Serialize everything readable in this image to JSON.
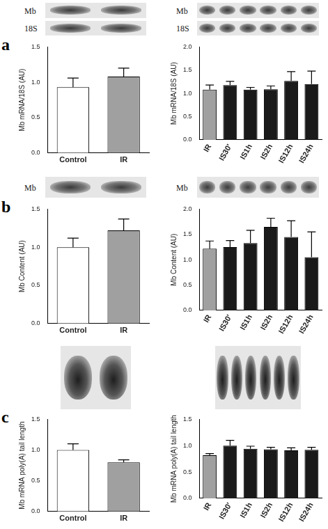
{
  "chart_data": [
    {
      "type": "bar",
      "panel_label": "a",
      "blot_labels": [
        "Mb",
        "18S"
      ],
      "y_label": "Mb mRNA/18S (AU)",
      "categories": [
        "Control",
        "IR"
      ],
      "values": [
        0.93,
        1.08
      ],
      "errors": [
        0.13,
        0.12
      ],
      "colors": [
        "#ffffff",
        "#a0a0a0"
      ],
      "ylim": [
        0,
        1.5
      ],
      "yticks": [
        {
          "value": 0,
          "label": "0.0"
        },
        0.5,
        {
          "value": 1,
          "label": "1.0"
        },
        1.5
      ],
      "grid": false
    },
    {
      "type": "bar",
      "blot_labels": [
        "Mb",
        "18S"
      ],
      "y_label": "Mb mRNA/18S (AU)",
      "categories": [
        "IR",
        "IS30'",
        "IS1h",
        "IS2h",
        "IS12h",
        "IS24h"
      ],
      "values": [
        1.08,
        1.18,
        1.08,
        1.09,
        1.27,
        1.2
      ],
      "errors": [
        0.1,
        0.08,
        0.05,
        0.07,
        0.2,
        0.28
      ],
      "colors": [
        "#a0a0a0",
        "#1a1a1a",
        "#1a1a1a",
        "#1a1a1a",
        "#1a1a1a",
        "#1a1a1a"
      ],
      "ylim": [
        0,
        2
      ],
      "yticks": [
        {
          "value": 0,
          "label": "0.0"
        },
        0.5,
        {
          "value": 1,
          "label": "1.0"
        },
        1.5,
        {
          "value": 2,
          "label": "2.0"
        }
      ],
      "grid": false
    },
    {
      "type": "bar",
      "panel_label": "b",
      "blot_labels": [
        "Mb"
      ],
      "y_label": "Mb Content (AU)",
      "categories": [
        "Control",
        "IR"
      ],
      "values": [
        1.0,
        1.22
      ],
      "errors": [
        0.12,
        0.15
      ],
      "colors": [
        "#ffffff",
        "#a0a0a0"
      ],
      "ylim": [
        0,
        1.5
      ],
      "yticks": [
        {
          "value": 0,
          "label": "0.0"
        },
        0.5,
        {
          "value": 1,
          "label": "1.0"
        },
        1.5
      ],
      "grid": false
    },
    {
      "type": "bar",
      "blot_labels": [
        "Mb"
      ],
      "y_label": "Mb Content (AU)",
      "categories": [
        "IR",
        "IS30'",
        "IS1h",
        "IS2h",
        "IS12h",
        "IS24h"
      ],
      "values": [
        1.22,
        1.25,
        1.33,
        1.65,
        1.45,
        1.05
      ],
      "errors": [
        0.15,
        0.13,
        0.25,
        0.17,
        0.32,
        0.5
      ],
      "colors": [
        "#a0a0a0",
        "#1a1a1a",
        "#1a1a1a",
        "#1a1a1a",
        "#1a1a1a",
        "#1a1a1a"
      ],
      "ylim": [
        0,
        2
      ],
      "yticks": [
        {
          "value": 0,
          "label": "0.0"
        },
        0.5,
        {
          "value": 1,
          "label": "1.0"
        },
        1.5,
        {
          "value": 2,
          "label": "2.0"
        }
      ],
      "grid": false
    },
    {
      "type": "bar",
      "panel_label": "c",
      "y_label": "Mb mRNA poly(A) tail length",
      "categories": [
        "Control",
        "IR"
      ],
      "values": [
        1.0,
        0.8
      ],
      "errors": [
        0.1,
        0.04
      ],
      "colors": [
        "#ffffff",
        "#a0a0a0"
      ],
      "ylim": [
        0,
        1.5
      ],
      "yticks": [
        {
          "value": 0,
          "label": "0.0"
        },
        0.5,
        {
          "value": 1,
          "label": "1.0"
        },
        1.5
      ],
      "grid": false
    },
    {
      "type": "bar",
      "y_label": "Mb mRNA poly(A) tail length",
      "categories": [
        "IR",
        "IS30'",
        "IS1h",
        "IS2h",
        "IS12h",
        "IS24h"
      ],
      "values": [
        0.82,
        1.0,
        0.94,
        0.93,
        0.91,
        0.92
      ],
      "errors": [
        0.03,
        0.1,
        0.05,
        0.04,
        0.05,
        0.05
      ],
      "colors": [
        "#a0a0a0",
        "#1a1a1a",
        "#1a1a1a",
        "#1a1a1a",
        "#1a1a1a",
        "#1a1a1a"
      ],
      "ylim": [
        0,
        1.5
      ],
      "yticks": [
        {
          "value": 0,
          "label": "0.0"
        },
        0.5,
        {
          "value": 1,
          "label": "1.0"
        },
        1.5
      ],
      "grid": false
    }
  ]
}
